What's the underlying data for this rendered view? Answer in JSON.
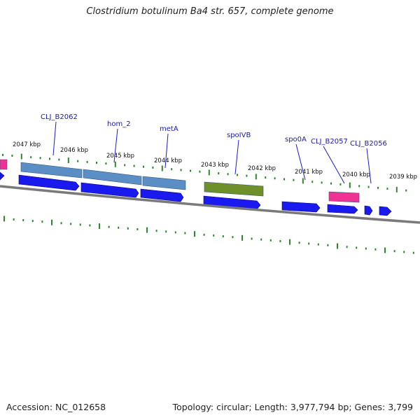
{
  "title": "Clostridium botulinum Ba4 str. 657, complete genome",
  "footer": {
    "accession": "Accession: NC_012658",
    "summary": "Topology: circular; Length: 3,977,794 bp; Genes: 3,799"
  },
  "colors": {
    "background": "#ffffff",
    "backbone": "#7a7a7a",
    "cds": "#1a1aee",
    "gene": "#5b8ec4",
    "gene_pink": "#ee3394",
    "gene_green": "#6e8f2a",
    "tick": "#2a8a2a",
    "label": "#1a1aaa",
    "leader": "#1a1ad0"
  },
  "ruler": {
    "labels": [
      "2047 kbp",
      "2046 kbp",
      "2045 kbp",
      "2044 kbp",
      "2043 kbp",
      "2042 kbp",
      "2041 kbp",
      "2040 kbp",
      "2039 kbp"
    ]
  },
  "genes": [
    {
      "name": "CLJ_B2062"
    },
    {
      "name": "hom_2"
    },
    {
      "name": "metA"
    },
    {
      "name": "spoIVB"
    },
    {
      "name": "spo0A"
    },
    {
      "name": "CLJ_B2057"
    },
    {
      "name": "CLJ_B2056"
    }
  ]
}
